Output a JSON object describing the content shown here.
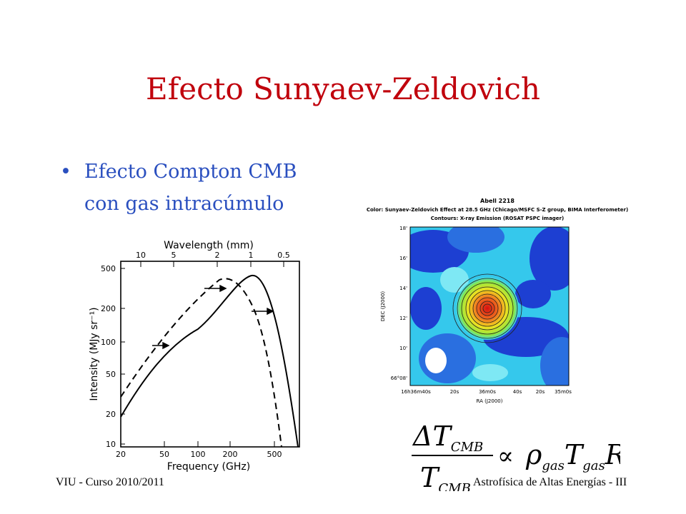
{
  "slide": {
    "title": "Efecto Sunyaev-Zeldovich",
    "bullet_line1": "Efecto Compton CMB",
    "bullet_line2": "con gas intracúmulo",
    "footer_left": "VIU - Curso 2010/2011",
    "footer_right": "Astrofísica de Altas Energías - III"
  },
  "spectrum_figure": {
    "top_axis_label": "Wavelength (mm)",
    "top_ticks": [
      "10",
      "5",
      "2",
      "1",
      "0.5"
    ],
    "x_label": "Frequency (GHz)",
    "y_label": "Intensity (MJy sr⁻¹)",
    "x_ticks": [
      "20",
      "50",
      "100",
      "200",
      "500"
    ],
    "y_ticks": [
      "10",
      "20",
      "50",
      "100",
      "200",
      "500"
    ]
  },
  "map_figure": {
    "title_line1": "Abell 2218",
    "title_line2": "Color: Sunyaev-Zeldovich Effect at 28.5 GHz (Chicago/MSFC S-Z group, BIMA Interferometer)",
    "title_line3": "Contours: X-ray Emission (ROSAT PSPC imager)",
    "y_label": "DEC (J2000)",
    "x_label": "RA (J2000)",
    "y_ticks": [
      "18'",
      "16'",
      "14'",
      "12'",
      "10'",
      "66°08'"
    ],
    "x_ticks": [
      "16h36m40s",
      "20s",
      "36m0s",
      "40s",
      "20s",
      "35m0s"
    ]
  },
  "equation": {
    "numerator": "ΔT",
    "numerator_sub": "CMB",
    "denominator": "T",
    "denominator_sub": "CMB",
    "proportional": "∝",
    "rho": "ρ",
    "rho_sub": "gas",
    "t": "T",
    "t_sub": "gas",
    "r": "R"
  },
  "colors": {
    "title": "#c0000c",
    "bullet": "#2a4fbf",
    "map_blue": "#1d3fd2",
    "map_cyan": "#3ad7f0"
  }
}
